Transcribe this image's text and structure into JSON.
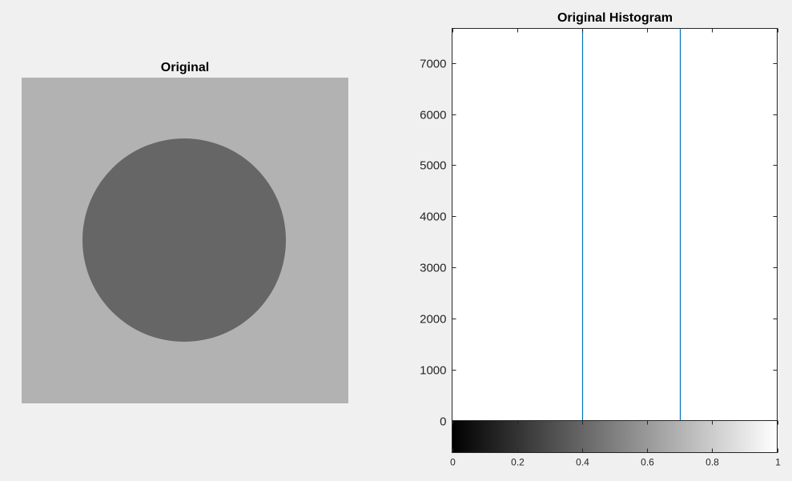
{
  "figure": {
    "background": "#f0f0f0"
  },
  "image_panel": {
    "title": "Original",
    "background_gray": "#b2b2b2",
    "circle_gray": "#666666"
  },
  "chart_data": {
    "type": "bar",
    "title": "Original Histogram",
    "xlabel": "",
    "ylabel": "",
    "xlim": [
      0,
      1
    ],
    "ylim": [
      0,
      7680
    ],
    "x": [
      0.4,
      0.7
    ],
    "values": [
      7680,
      7680
    ],
    "bar_color": "#0072bd",
    "y_ticks": [
      0,
      1000,
      2000,
      3000,
      4000,
      5000,
      6000,
      7000
    ],
    "y_tick_labels": [
      "0",
      "1000",
      "2000",
      "3000",
      "4000",
      "5000",
      "6000",
      "7000"
    ],
    "x_ticks": [
      0,
      0.2,
      0.4,
      0.6,
      0.8,
      1
    ],
    "x_tick_labels": [
      "0",
      "0.2",
      "0.4",
      "0.6",
      "0.8",
      "1"
    ],
    "colorbar": "gray",
    "grid": false
  }
}
